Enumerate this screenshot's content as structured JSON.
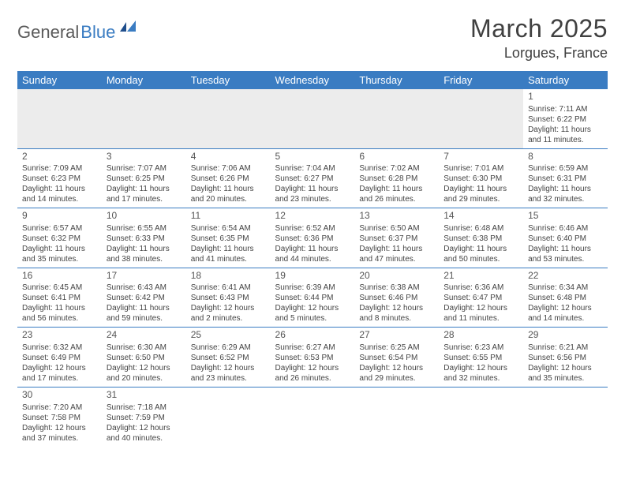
{
  "logo": {
    "word1": "General",
    "word2": "Blue"
  },
  "title": "March 2025",
  "location": "Lorgues, France",
  "weekdays": [
    "Sunday",
    "Monday",
    "Tuesday",
    "Wednesday",
    "Thursday",
    "Friday",
    "Saturday"
  ],
  "colors": {
    "header_bg": "#3a7cc2",
    "header_fg": "#ffffff",
    "row_border": "#3a7cc2",
    "empty_bg": "#ececec",
    "text": "#444444"
  },
  "weeks": [
    [
      null,
      null,
      null,
      null,
      null,
      null,
      {
        "n": "1",
        "sr": "Sunrise: 7:11 AM",
        "ss": "Sunset: 6:22 PM",
        "d1": "Daylight: 11 hours",
        "d2": "and 11 minutes."
      }
    ],
    [
      {
        "n": "2",
        "sr": "Sunrise: 7:09 AM",
        "ss": "Sunset: 6:23 PM",
        "d1": "Daylight: 11 hours",
        "d2": "and 14 minutes."
      },
      {
        "n": "3",
        "sr": "Sunrise: 7:07 AM",
        "ss": "Sunset: 6:25 PM",
        "d1": "Daylight: 11 hours",
        "d2": "and 17 minutes."
      },
      {
        "n": "4",
        "sr": "Sunrise: 7:06 AM",
        "ss": "Sunset: 6:26 PM",
        "d1": "Daylight: 11 hours",
        "d2": "and 20 minutes."
      },
      {
        "n": "5",
        "sr": "Sunrise: 7:04 AM",
        "ss": "Sunset: 6:27 PM",
        "d1": "Daylight: 11 hours",
        "d2": "and 23 minutes."
      },
      {
        "n": "6",
        "sr": "Sunrise: 7:02 AM",
        "ss": "Sunset: 6:28 PM",
        "d1": "Daylight: 11 hours",
        "d2": "and 26 minutes."
      },
      {
        "n": "7",
        "sr": "Sunrise: 7:01 AM",
        "ss": "Sunset: 6:30 PM",
        "d1": "Daylight: 11 hours",
        "d2": "and 29 minutes."
      },
      {
        "n": "8",
        "sr": "Sunrise: 6:59 AM",
        "ss": "Sunset: 6:31 PM",
        "d1": "Daylight: 11 hours",
        "d2": "and 32 minutes."
      }
    ],
    [
      {
        "n": "9",
        "sr": "Sunrise: 6:57 AM",
        "ss": "Sunset: 6:32 PM",
        "d1": "Daylight: 11 hours",
        "d2": "and 35 minutes."
      },
      {
        "n": "10",
        "sr": "Sunrise: 6:55 AM",
        "ss": "Sunset: 6:33 PM",
        "d1": "Daylight: 11 hours",
        "d2": "and 38 minutes."
      },
      {
        "n": "11",
        "sr": "Sunrise: 6:54 AM",
        "ss": "Sunset: 6:35 PM",
        "d1": "Daylight: 11 hours",
        "d2": "and 41 minutes."
      },
      {
        "n": "12",
        "sr": "Sunrise: 6:52 AM",
        "ss": "Sunset: 6:36 PM",
        "d1": "Daylight: 11 hours",
        "d2": "and 44 minutes."
      },
      {
        "n": "13",
        "sr": "Sunrise: 6:50 AM",
        "ss": "Sunset: 6:37 PM",
        "d1": "Daylight: 11 hours",
        "d2": "and 47 minutes."
      },
      {
        "n": "14",
        "sr": "Sunrise: 6:48 AM",
        "ss": "Sunset: 6:38 PM",
        "d1": "Daylight: 11 hours",
        "d2": "and 50 minutes."
      },
      {
        "n": "15",
        "sr": "Sunrise: 6:46 AM",
        "ss": "Sunset: 6:40 PM",
        "d1": "Daylight: 11 hours",
        "d2": "and 53 minutes."
      }
    ],
    [
      {
        "n": "16",
        "sr": "Sunrise: 6:45 AM",
        "ss": "Sunset: 6:41 PM",
        "d1": "Daylight: 11 hours",
        "d2": "and 56 minutes."
      },
      {
        "n": "17",
        "sr": "Sunrise: 6:43 AM",
        "ss": "Sunset: 6:42 PM",
        "d1": "Daylight: 11 hours",
        "d2": "and 59 minutes."
      },
      {
        "n": "18",
        "sr": "Sunrise: 6:41 AM",
        "ss": "Sunset: 6:43 PM",
        "d1": "Daylight: 12 hours",
        "d2": "and 2 minutes."
      },
      {
        "n": "19",
        "sr": "Sunrise: 6:39 AM",
        "ss": "Sunset: 6:44 PM",
        "d1": "Daylight: 12 hours",
        "d2": "and 5 minutes."
      },
      {
        "n": "20",
        "sr": "Sunrise: 6:38 AM",
        "ss": "Sunset: 6:46 PM",
        "d1": "Daylight: 12 hours",
        "d2": "and 8 minutes."
      },
      {
        "n": "21",
        "sr": "Sunrise: 6:36 AM",
        "ss": "Sunset: 6:47 PM",
        "d1": "Daylight: 12 hours",
        "d2": "and 11 minutes."
      },
      {
        "n": "22",
        "sr": "Sunrise: 6:34 AM",
        "ss": "Sunset: 6:48 PM",
        "d1": "Daylight: 12 hours",
        "d2": "and 14 minutes."
      }
    ],
    [
      {
        "n": "23",
        "sr": "Sunrise: 6:32 AM",
        "ss": "Sunset: 6:49 PM",
        "d1": "Daylight: 12 hours",
        "d2": "and 17 minutes."
      },
      {
        "n": "24",
        "sr": "Sunrise: 6:30 AM",
        "ss": "Sunset: 6:50 PM",
        "d1": "Daylight: 12 hours",
        "d2": "and 20 minutes."
      },
      {
        "n": "25",
        "sr": "Sunrise: 6:29 AM",
        "ss": "Sunset: 6:52 PM",
        "d1": "Daylight: 12 hours",
        "d2": "and 23 minutes."
      },
      {
        "n": "26",
        "sr": "Sunrise: 6:27 AM",
        "ss": "Sunset: 6:53 PM",
        "d1": "Daylight: 12 hours",
        "d2": "and 26 minutes."
      },
      {
        "n": "27",
        "sr": "Sunrise: 6:25 AM",
        "ss": "Sunset: 6:54 PM",
        "d1": "Daylight: 12 hours",
        "d2": "and 29 minutes."
      },
      {
        "n": "28",
        "sr": "Sunrise: 6:23 AM",
        "ss": "Sunset: 6:55 PM",
        "d1": "Daylight: 12 hours",
        "d2": "and 32 minutes."
      },
      {
        "n": "29",
        "sr": "Sunrise: 6:21 AM",
        "ss": "Sunset: 6:56 PM",
        "d1": "Daylight: 12 hours",
        "d2": "and 35 minutes."
      }
    ],
    [
      {
        "n": "30",
        "sr": "Sunrise: 7:20 AM",
        "ss": "Sunset: 7:58 PM",
        "d1": "Daylight: 12 hours",
        "d2": "and 37 minutes."
      },
      {
        "n": "31",
        "sr": "Sunrise: 7:18 AM",
        "ss": "Sunset: 7:59 PM",
        "d1": "Daylight: 12 hours",
        "d2": "and 40 minutes."
      },
      null,
      null,
      null,
      null,
      null
    ]
  ]
}
